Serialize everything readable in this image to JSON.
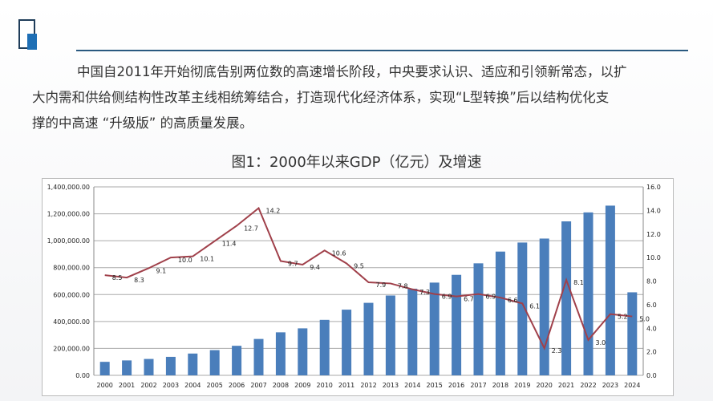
{
  "header": {
    "paragraph_lines": [
      "中国自2011年开始彻底告别两位数的高速增长阶段，中央要求认识、适应和引领新常态，以扩",
      "大内需和供给侧结构性改革主线相统筹结合，打造现代化经济体系，实现“L型转换”后以结构优化支",
      "撑的中高速 “升级版” 的高质量发展。"
    ]
  },
  "colors": {
    "bar": "#4a7ebb",
    "line": "#a0404a",
    "accent": "#1e6fb5"
  },
  "chart_data": {
    "type": "bar+line",
    "title": "图1：2000年以来GDP（亿元）及增速",
    "categories": [
      "2000",
      "2001",
      "2002",
      "2003",
      "2004",
      "2005",
      "2006",
      "2007",
      "2008",
      "2009",
      "2010",
      "2011",
      "2012",
      "2013",
      "2014",
      "2015",
      "2016",
      "2017",
      "2018",
      "2019",
      "2020",
      "2021",
      "2022",
      "2023",
      "2024"
    ],
    "series": [
      {
        "axis": "left",
        "type": "bar",
        "values": [
          100280,
          110863,
          121717,
          137422,
          161840,
          187319,
          219439,
          270232,
          319516,
          349081,
          412119,
          487940,
          538580,
          592963,
          643563,
          688858,
          746395,
          832036,
          919281,
          986515,
          1015986,
          1143670,
          1210207,
          1260582,
          616836
        ]
      },
      {
        "axis": "right",
        "type": "line",
        "values": [
          8.5,
          8.3,
          9.1,
          10.0,
          10.1,
          11.4,
          12.7,
          14.2,
          9.7,
          9.4,
          10.6,
          9.5,
          7.9,
          7.8,
          7.3,
          6.9,
          6.7,
          6.9,
          6.6,
          6.1,
          2.3,
          8.1,
          3.0,
          5.2,
          5.0
        ],
        "labels": [
          "8.5",
          "8.3",
          "9.1",
          "10.0",
          "10.1",
          "11.4",
          "12.7",
          "14.2",
          "9.7",
          "9.4",
          "10.6",
          "9.5",
          "7.9",
          "7.8",
          "7.3",
          "6.9",
          "6.7",
          "6.9",
          "6.6",
          "6.1",
          "2.3",
          "8.1",
          "3.0",
          "5.2",
          "5.0"
        ]
      }
    ],
    "y_left": {
      "range": [
        0,
        1400000
      ],
      "ticks": [
        "0.00",
        "200,000.00",
        "400,000.00",
        "600,000.00",
        "800,000.00",
        "1,000,000.00",
        "1,200,000.00",
        "1,400,000.00"
      ]
    },
    "y_right": {
      "range": [
        0,
        16
      ],
      "ticks": [
        "0.0",
        "2.0",
        "4.0",
        "6.0",
        "8.0",
        "10.0",
        "12.0",
        "14.0",
        "16.0"
      ]
    },
    "grid": true,
    "legend": "none"
  }
}
